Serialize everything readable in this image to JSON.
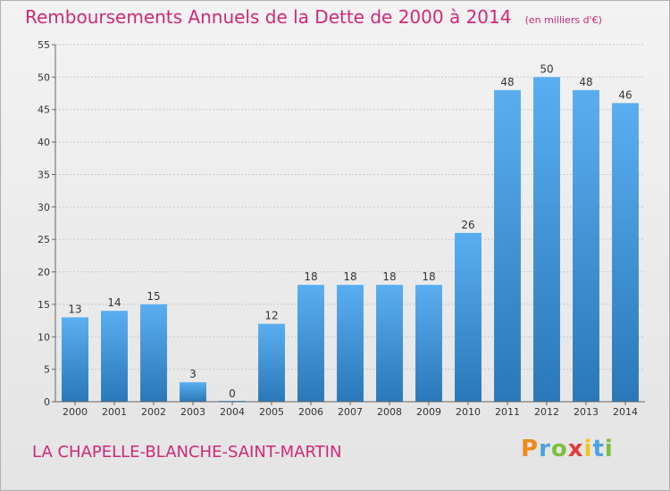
{
  "header": {
    "title": "Remboursements Annuels de la Dette de 2000 à 2014",
    "unit": "(en milliers d'€)"
  },
  "footer": {
    "commune": "LA CHAPELLE-BLANCHE-SAINT-MARTIN",
    "logo_text": "Proxiti",
    "logo_colors": [
      "#f08a1c",
      "#4aa3df",
      "#7cbf3a",
      "#e23b3b",
      "#f0c419",
      "#4aa3df",
      "#7cbf3a"
    ]
  },
  "chart_data": {
    "type": "bar",
    "title": "Remboursements Annuels de la Dette de 2000 à 2014",
    "xlabel": "",
    "ylabel": "",
    "categories": [
      "2000",
      "2001",
      "2002",
      "2003",
      "2004",
      "2005",
      "2006",
      "2007",
      "2008",
      "2009",
      "2010",
      "2011",
      "2012",
      "2013",
      "2014"
    ],
    "values": [
      13,
      14,
      15,
      3,
      0,
      12,
      18,
      18,
      18,
      18,
      26,
      48,
      50,
      48,
      46
    ],
    "ylim": [
      0,
      55
    ],
    "yticks": [
      0,
      5,
      10,
      15,
      20,
      25,
      30,
      35,
      40,
      45,
      50,
      55
    ],
    "grid": true,
    "bar_color_top": "#5aaef0",
    "bar_color_bottom": "#2a78b8",
    "grid_color": "#c8c8c8"
  }
}
